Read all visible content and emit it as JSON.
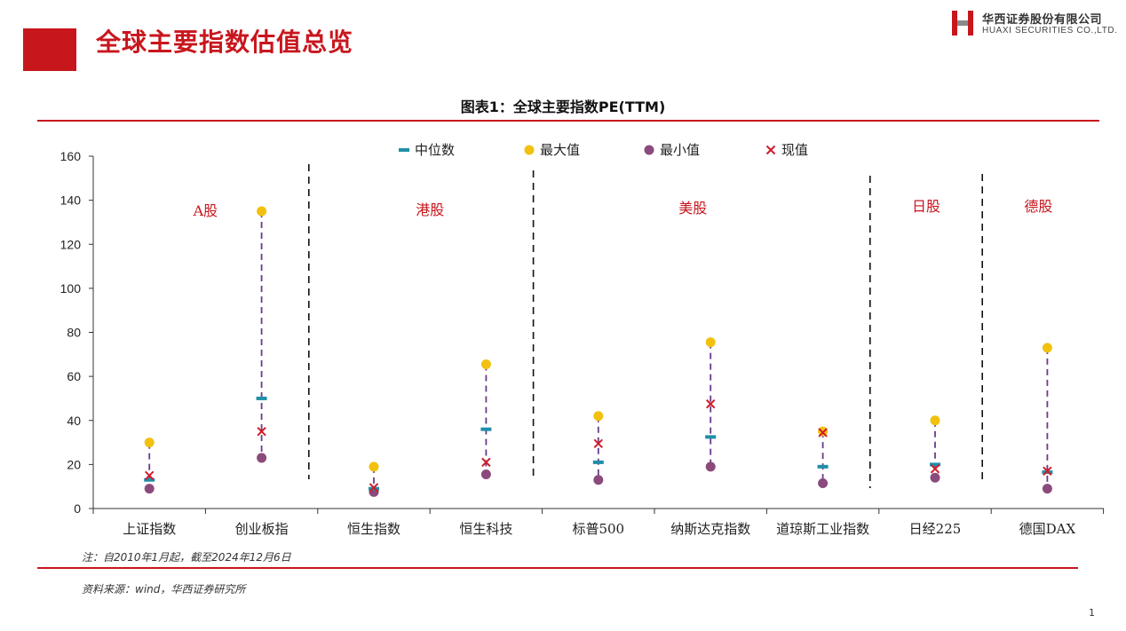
{
  "header": {
    "title": "全球主要指数估值总览",
    "logo_cn": "华西证券股份有限公司",
    "logo_en": "HUAXI SECURITIES CO.,LTD."
  },
  "footer": {
    "note": "注：自2010年1月起，截至2024年12月6日",
    "source": "资料来源：wind，华西证券研究所",
    "page_number": "1"
  },
  "colors": {
    "brand_red": "#c8161d",
    "median": "#1f8fa8",
    "max": "#f2c10f",
    "min": "#8b4a7c",
    "current": "#d01c2a",
    "range_line": "#6b3a8a"
  },
  "chart_data": {
    "type": "scatter",
    "title": "图表1：全球主要指数PE(TTM)",
    "categories": [
      "上证指数",
      "创业板指",
      "恒生指数",
      "恒生科技",
      "标普500",
      "纳斯达克指数",
      "道琼斯工业指数",
      "日经225",
      "德国DAX"
    ],
    "series": [
      {
        "name": "中位数",
        "marker": "dash",
        "values": [
          13,
          50,
          9,
          36,
          21,
          32.5,
          19,
          20,
          16.5
        ]
      },
      {
        "name": "最大值",
        "marker": "circle",
        "values": [
          30,
          135,
          19,
          65.5,
          42,
          75.5,
          35,
          40,
          73
        ]
      },
      {
        "name": "最小值",
        "marker": "circle",
        "values": [
          9,
          23,
          7.5,
          15.5,
          13,
          19,
          11.5,
          14,
          9
        ]
      },
      {
        "name": "现值",
        "marker": "cross",
        "values": [
          15,
          35,
          9.5,
          21,
          29.5,
          47.5,
          34.5,
          18,
          17
        ]
      }
    ],
    "groups": [
      {
        "label": "A股",
        "categories": [
          0,
          1
        ]
      },
      {
        "label": "港股",
        "categories": [
          2,
          3
        ]
      },
      {
        "label": "美股",
        "categories": [
          4,
          5,
          6
        ]
      },
      {
        "label": "日股",
        "categories": [
          7
        ]
      },
      {
        "label": "德股",
        "categories": [
          8
        ]
      }
    ],
    "ylim": [
      0,
      160
    ],
    "yticks": [
      0,
      20,
      40,
      60,
      80,
      100,
      120,
      140,
      160
    ],
    "legend_position": "top-center",
    "grid": false
  }
}
